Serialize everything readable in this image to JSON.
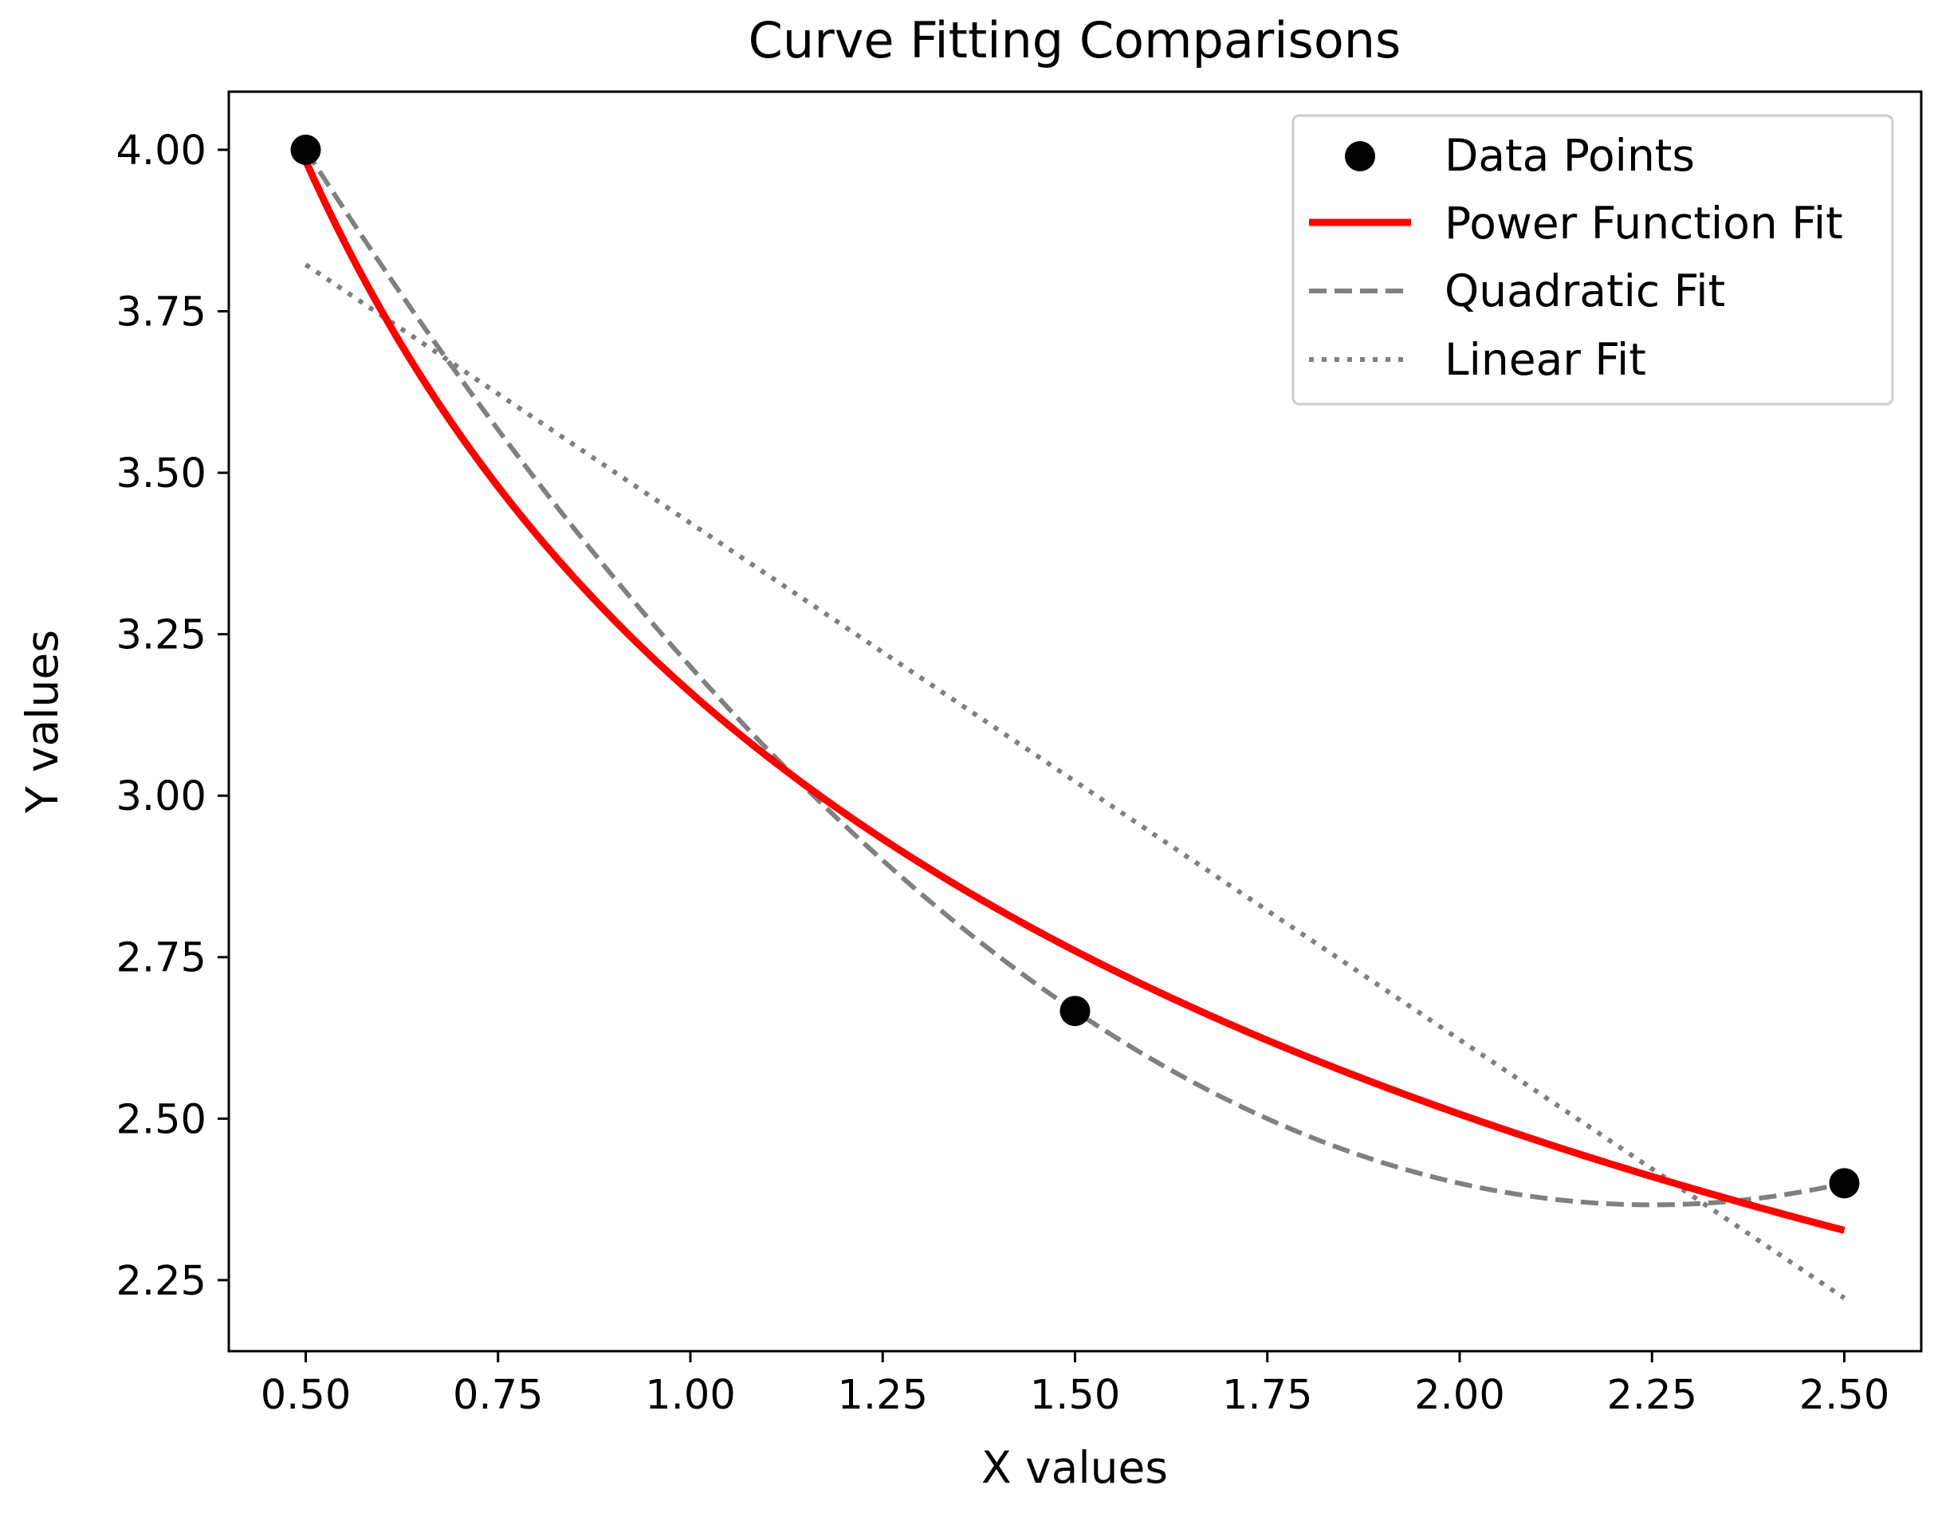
{
  "chart_data": {
    "type": "line",
    "title": "Curve Fitting Comparisons",
    "xlabel": "X values",
    "ylabel": "Y values",
    "xlim": [
      0.4,
      2.6
    ],
    "ylim": [
      2.14,
      4.09
    ],
    "xticks": [
      0.5,
      0.75,
      1.0,
      1.25,
      1.5,
      1.75,
      2.0,
      2.25,
      2.5
    ],
    "xtick_labels": [
      "0.50",
      "0.75",
      "1.00",
      "1.25",
      "1.50",
      "1.75",
      "2.00",
      "2.25",
      "2.50"
    ],
    "yticks": [
      2.25,
      2.5,
      2.75,
      3.0,
      3.25,
      3.5,
      3.75,
      4.0
    ],
    "ytick_labels": [
      "2.25",
      "2.50",
      "2.75",
      "3.00",
      "3.25",
      "3.50",
      "3.75",
      "4.00"
    ],
    "points": {
      "name": "Data Points",
      "x": [
        0.5,
        1.5,
        2.5
      ],
      "y": [
        4.0,
        2.6667,
        2.4
      ],
      "color": "#000000"
    },
    "series": [
      {
        "name": "Power Function Fit",
        "kind": "power",
        "coef": {
          "a": 3.1599,
          "b": -0.3339
        },
        "x_range": [
          0.5,
          2.5
        ],
        "color": "#ff0000",
        "style": "solid"
      },
      {
        "name": "Quadratic Fit",
        "kind": "quadratic",
        "coef": {
          "a": 0.5333,
          "b": -2.4,
          "c": 5.0667
        },
        "x_range": [
          0.5,
          2.5
        ],
        "color": "#808080",
        "style": "dashed"
      },
      {
        "name": "Linear Fit",
        "kind": "linear",
        "coef": {
          "m": -0.8,
          "c": 4.2222
        },
        "x_range": [
          0.5,
          2.5
        ],
        "color": "#808080",
        "style": "dotted"
      }
    ],
    "legend": {
      "position": "top-right",
      "entries": [
        "Data Points",
        "Power Function Fit",
        "Quadratic Fit",
        "Linear Fit"
      ]
    }
  }
}
